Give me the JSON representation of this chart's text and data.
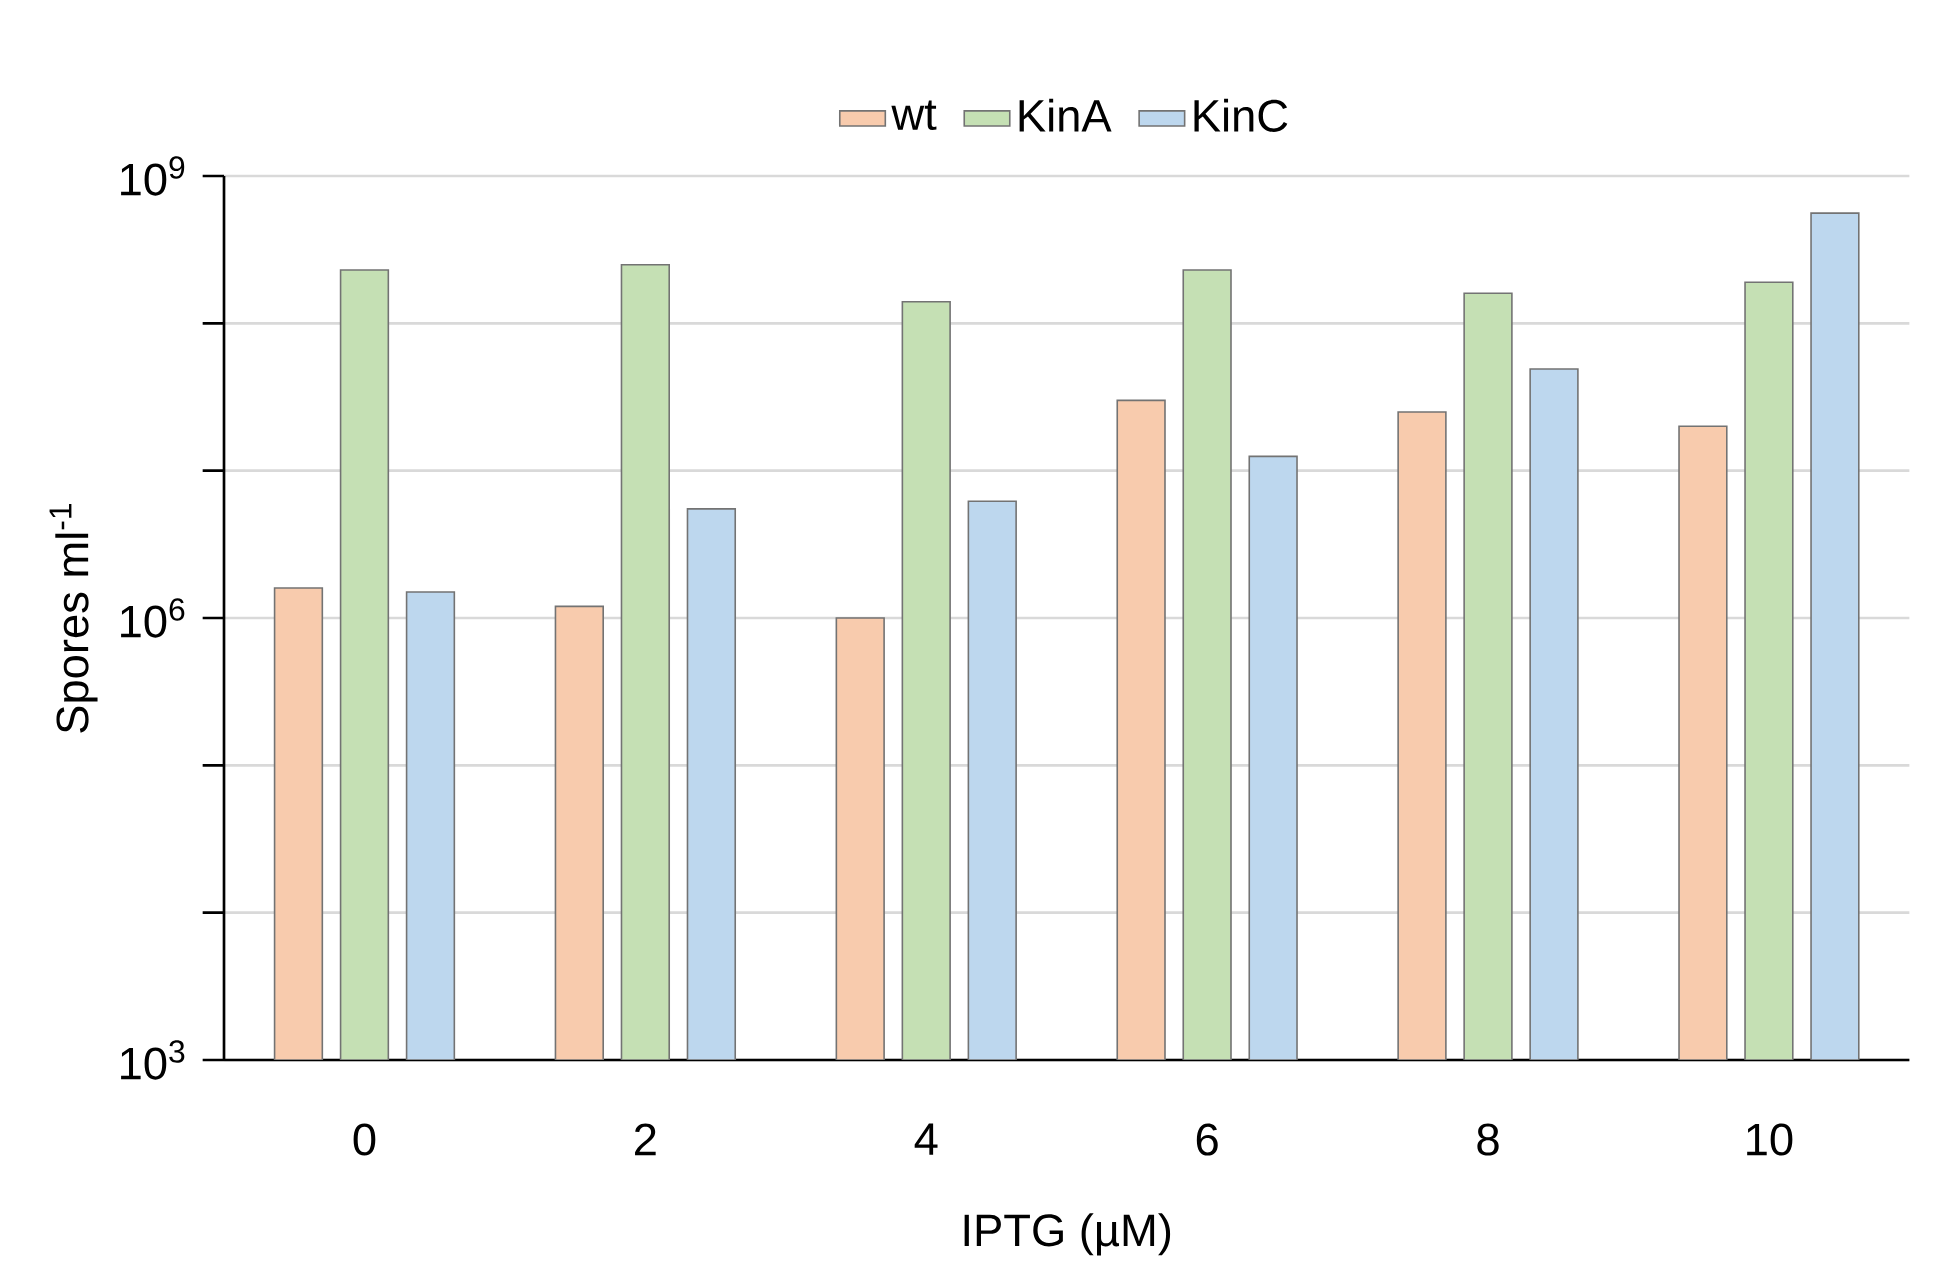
{
  "chart_data": {
    "type": "bar",
    "xlabel": "IPTG (µM)",
    "ylabel": "Spores ml$^{-1}$",
    "categories": [
      "0",
      "2",
      "4",
      "6",
      "8",
      "10"
    ],
    "series": [
      {
        "name": "wt",
        "color": "#f8cbad",
        "values": [
          1600000.0,
          1200000.0,
          1000000.0,
          30000000.0,
          25000000.0,
          20000000.0
        ]
      },
      {
        "name": "KinA",
        "color": "#c5e0b4",
        "values": [
          230000000.0,
          250000000.0,
          140000000.0,
          230000000.0,
          160000000.0,
          190000000.0
        ]
      },
      {
        "name": "KinC",
        "color": "#bdd7ee",
        "values": [
          1500000.0,
          5500000.0,
          6200000.0,
          12500000.0,
          49000000.0,
          560000000.0
        ]
      }
    ],
    "ylim": [
      1000,
      1000000000
    ],
    "yticks": [
      {
        "value": 1000,
        "label": "10$^{3}$"
      },
      {
        "value": 10000,
        "label": null
      },
      {
        "value": 100000,
        "label": null
      },
      {
        "value": 1000000,
        "label": "10$^{6}$"
      },
      {
        "value": 10000000,
        "label": null
      },
      {
        "value": 100000000,
        "label": null
      },
      {
        "value": 1000000000,
        "label": "10$^{9}$"
      }
    ],
    "log": "y",
    "grid": "y",
    "legend": "top"
  }
}
